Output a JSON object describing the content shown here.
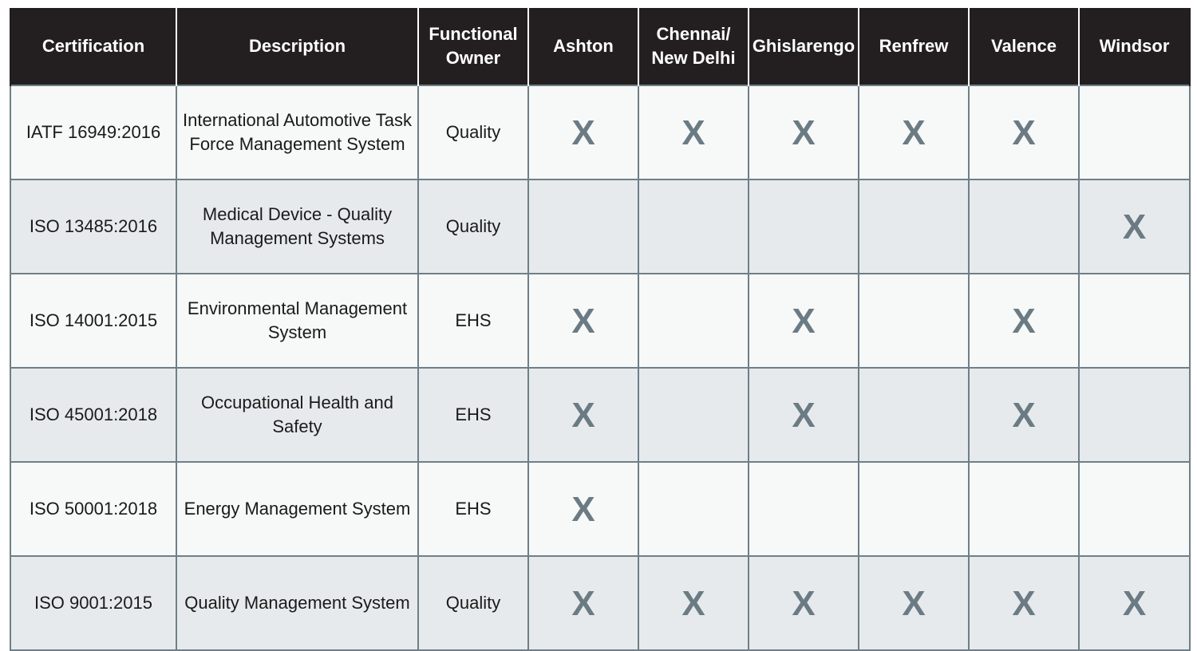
{
  "table": {
    "headers": [
      "Certification",
      "Description",
      "Functional\nOwner",
      "Ashton",
      "Chennai/\nNew Delhi",
      "Ghislarengo",
      "Renfrew",
      "Valence",
      "Windsor"
    ],
    "rows": [
      {
        "certification": "IATF 16949:2016",
        "description": "International Automotive Task Force Management System",
        "owner": "Quality",
        "marks": [
          "X",
          "X",
          "X",
          "X",
          "X",
          ""
        ]
      },
      {
        "certification": "ISO 13485:2016",
        "description": "Medical Device - Quality Management Systems",
        "owner": "Quality",
        "marks": [
          "",
          "",
          "",
          "",
          "",
          "X"
        ]
      },
      {
        "certification": "ISO 14001:2015",
        "description": "Environmental Management System",
        "owner": "EHS",
        "marks": [
          "X",
          "",
          "X",
          "",
          "X",
          ""
        ]
      },
      {
        "certification": "ISO 45001:2018",
        "description": "Occupational Health and Safety",
        "owner": "EHS",
        "marks": [
          "X",
          "",
          "X",
          "",
          "X",
          ""
        ]
      },
      {
        "certification": "ISO 50001:2018",
        "description": "Energy Management System",
        "owner": "EHS",
        "marks": [
          "X",
          "",
          "",
          "",
          "",
          ""
        ]
      },
      {
        "certification": "ISO 9001:2015",
        "description": "Quality Management System",
        "owner": "Quality",
        "marks": [
          "X",
          "X",
          "X",
          "X",
          "X",
          "X"
        ]
      }
    ]
  },
  "colors": {
    "header_bg": "#231f20",
    "row_light": "#f7f8f8",
    "row_shaded": "#e7eaec",
    "border": "#6e7f88",
    "mark": "#6b7b84"
  }
}
